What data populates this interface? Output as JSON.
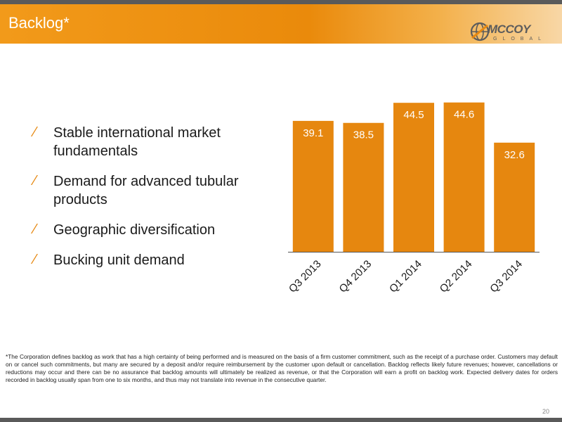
{
  "slide": {
    "title": "Backlog*",
    "page_number": "20",
    "footnote": "*The Corporation defines backlog as work that has a high certainty of being performed and is measured on the basis of a firm customer commitment, such as the receipt of a purchase order. Customers may default on or cancel such commitments, but many are secured by a deposit and/or require reimbursement by the customer upon default or cancellation. Backlog reflects likely future revenues; however, cancellations or reductions may occur and there can be no assurance that backlog amounts will ultimately be realized as revenue, or that the Corporation will earn a profit on backlog work. Expected delivery dates for orders recorded in backlog usually span from one to six months, and thus may not translate into revenue in the consecutive quarter."
  },
  "logo": {
    "wordmark": "MCCOY",
    "sub": "GLOBAL",
    "icon": "globe-icon"
  },
  "bullets": [
    "Stable international market fundamentals",
    "Demand for advanced tubular products",
    "Geographic diversification",
    "Bucking unit demand"
  ],
  "bullet_marker": "⁄",
  "colors": {
    "accent": "#e6870f",
    "bar": "#e6870f",
    "label": "#ffffff",
    "axis": "#555555"
  },
  "chart_data": {
    "type": "bar",
    "title": "",
    "xlabel": "",
    "ylabel": "",
    "categories": [
      "Q3 2013",
      "Q4 2013",
      "Q1 2014",
      "Q2 2014",
      "Q3 2014"
    ],
    "values": [
      39.1,
      38.5,
      44.5,
      44.6,
      32.6
    ],
    "data_labels": [
      "39.1",
      "38.5",
      "44.5",
      "44.6",
      "32.6"
    ],
    "ylim": [
      0,
      50
    ],
    "grid": false,
    "legend": "none"
  }
}
